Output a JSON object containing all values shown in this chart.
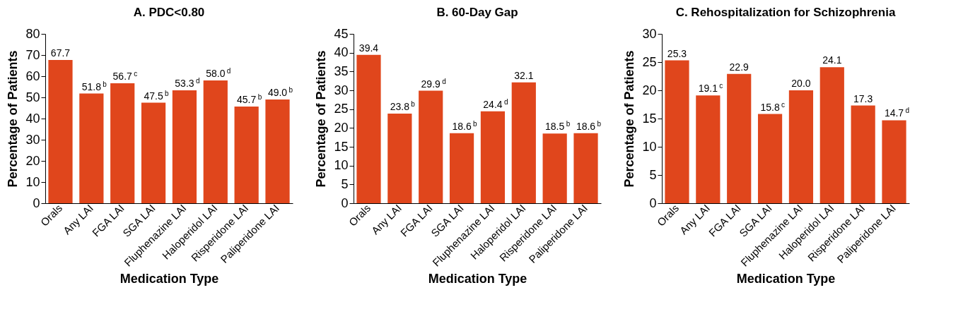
{
  "chart_data": [
    {
      "type": "bar",
      "title": "A. PDC<0.80",
      "xlabel": "Medication Type",
      "ylabel": "Percentage of Patients",
      "categories": [
        "Orals",
        "Any LAI",
        "FGA LAI",
        "SGA LAI",
        "Fluphenazine LAI",
        "Haloperidol LAI",
        "Risperidone LAI",
        "Paliperidone LAI"
      ],
      "values": [
        67.7,
        51.8,
        56.7,
        47.5,
        53.3,
        58.0,
        45.7,
        49.0
      ],
      "value_labels": [
        "67.7",
        "51.8$^{b}$",
        "56.7$^{c}$",
        "47.5$^{b}$",
        "53.3$^{d}$",
        "58.0$^{d}$",
        "45.7$^{b}$",
        "49.0$^{b}$"
      ],
      "color": "#e0461c",
      "ylim": [
        0,
        80
      ],
      "yticks": [
        0,
        10,
        20,
        30,
        40,
        50,
        60,
        70,
        80
      ],
      "grid": false
    },
    {
      "type": "bar",
      "title": "B. 60-Day Gap",
      "xlabel": "Medication Type",
      "ylabel": "Percentage of Patients",
      "categories": [
        "Orals",
        "Any LAI",
        "FGA LAI",
        "SGA LAI",
        "Fluphenazine LAI",
        "Haloperidol LAI",
        "Risperidone LAI",
        "Paliperidone LAI"
      ],
      "values": [
        39.4,
        23.8,
        29.9,
        18.6,
        24.4,
        32.1,
        18.5,
        18.6
      ],
      "value_labels": [
        "39.4",
        "23.8$^{b}$",
        "29.9$^{d}$",
        "18.6$^{b}$",
        "24.4$^{d}$",
        "32.1",
        "18.5$^{b}$",
        "18.6$^{b}$"
      ],
      "color": "#e0461c",
      "ylim": [
        0,
        45
      ],
      "yticks": [
        0,
        5,
        10,
        15,
        20,
        25,
        30,
        35,
        40,
        45
      ],
      "grid": false
    },
    {
      "type": "bar",
      "title": "C. Rehospitalization for Schizophrenia",
      "xlabel": "Medication Type",
      "ylabel": "Percentage of Patients",
      "categories": [
        "Orals",
        "Any LAI",
        "FGA LAI",
        "SGA LAI",
        "Fluphenazine LAI",
        "Haloperidol LAI",
        "Risperidone LAI",
        "Paliperidone LAI"
      ],
      "values": [
        25.3,
        19.1,
        22.9,
        15.8,
        20.0,
        24.1,
        17.3,
        14.7
      ],
      "value_labels": [
        "25.3",
        "19.1$^{c}$",
        "22.9",
        "15.8$^{c}$",
        "20.0",
        "24.1",
        "17.3",
        "14.7$^{d}$"
      ],
      "color": "#e0461c",
      "ylim": [
        0,
        30
      ],
      "yticks": [
        0,
        5,
        10,
        15,
        20,
        25,
        30
      ],
      "grid": false
    }
  ]
}
